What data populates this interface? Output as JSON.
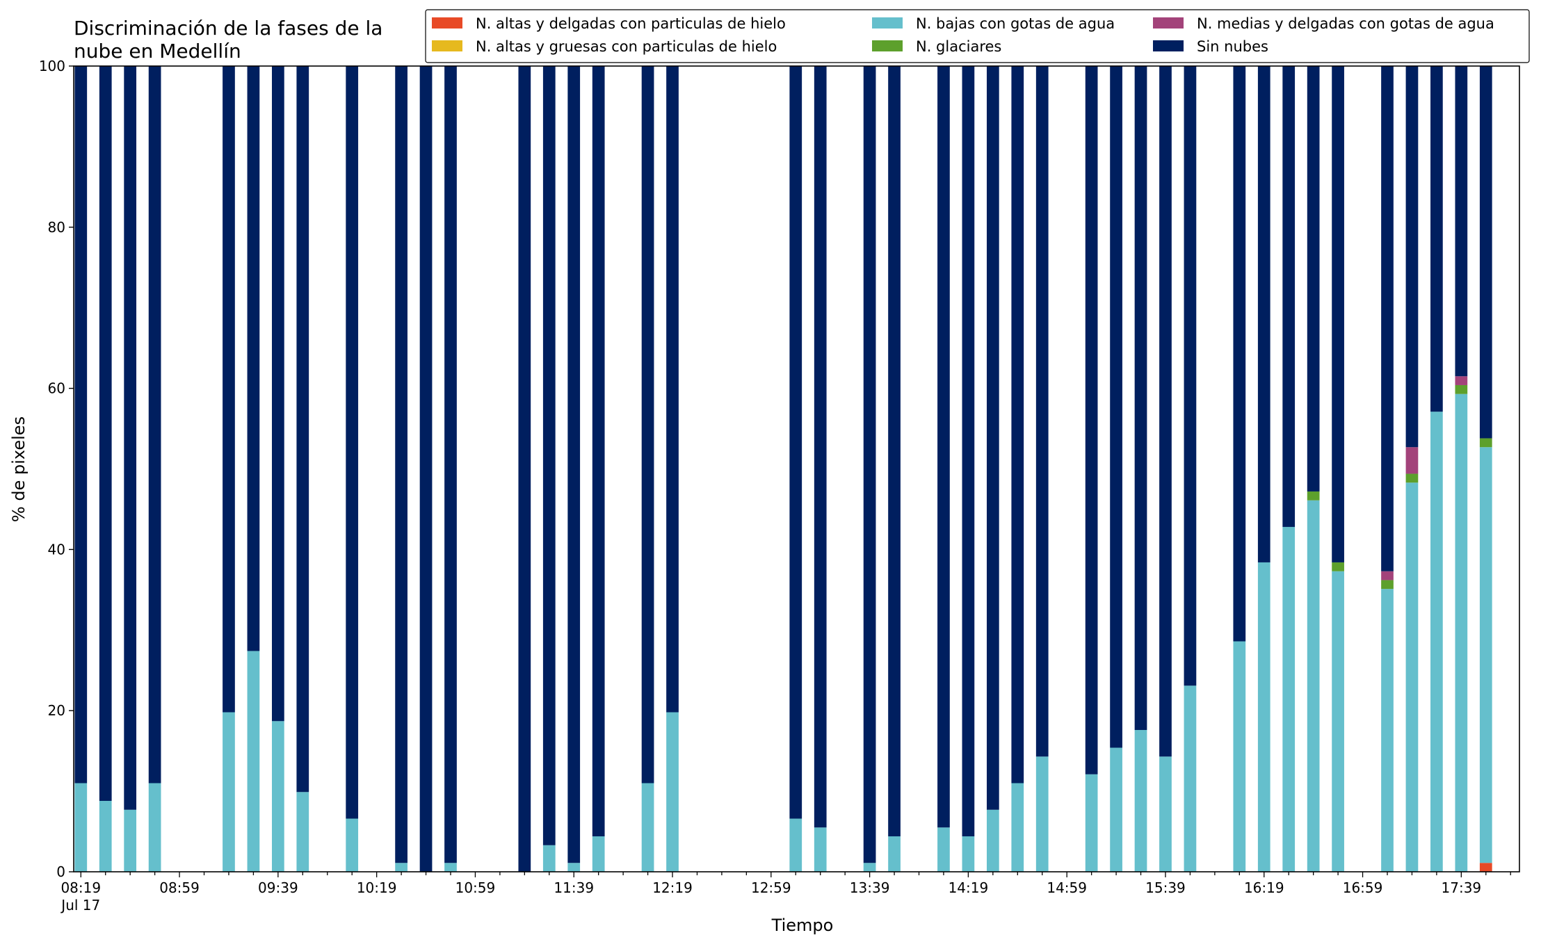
{
  "chart_data": {
    "type": "bar",
    "stacked": true,
    "title": "Discriminación de la fases de la\nnube en Medellín",
    "xlabel": "Tiempo",
    "ylabel": "% de pixeles",
    "ylim": [
      0,
      100
    ],
    "yticks": [
      0,
      20,
      40,
      60,
      80,
      100
    ],
    "x_slot_minutes": 10,
    "x_start": "08:19",
    "x_end": "17:59",
    "x_major_ticks": [
      "08:19",
      "08:59",
      "09:39",
      "10:19",
      "10:59",
      "11:39",
      "12:19",
      "12:59",
      "13:39",
      "14:19",
      "14:59",
      "15:39",
      "16:19",
      "16:59",
      "17:39"
    ],
    "x_date_label": "Jul 17",
    "grid": false,
    "legend_position": "top-right",
    "legend_columns": 3,
    "legend_order": [
      "N. altas y delgadas con particulas de hielo",
      "N. altas y gruesas con particulas de hielo",
      "N. bajas con gotas de agua",
      "N. glaciares",
      "N. medias y delgadas con gotas de agua",
      "Sin nubes"
    ],
    "categories": [
      "08:19",
      "08:29",
      "08:39",
      "08:49",
      "09:19",
      "09:29",
      "09:39",
      "09:49",
      "10:09",
      "10:29",
      "10:39",
      "10:49",
      "11:19",
      "11:29",
      "11:39",
      "11:49",
      "12:09",
      "12:19",
      "13:09",
      "13:19",
      "13:39",
      "13:49",
      "14:09",
      "14:19",
      "14:29",
      "14:39",
      "14:49",
      "15:09",
      "15:19",
      "15:29",
      "15:39",
      "15:49",
      "16:09",
      "16:19",
      "16:29",
      "16:39",
      "16:49",
      "17:09",
      "17:19",
      "17:29",
      "17:39",
      "17:49"
    ],
    "series": [
      {
        "name": "N. altas y delgadas con particulas de hielo",
        "color": "#e84a27",
        "values": [
          0,
          0,
          0,
          0,
          0,
          0,
          0,
          0,
          0,
          0,
          0,
          0,
          0,
          0,
          0,
          0,
          0,
          0,
          0,
          0,
          0,
          0,
          0,
          0,
          0,
          0,
          0,
          0,
          0,
          0,
          0,
          0,
          0,
          0,
          0,
          0,
          0,
          0,
          0,
          0,
          0,
          1.1
        ]
      },
      {
        "name": "N. altas y gruesas con particulas de hielo",
        "color": "#e6b91e",
        "values": [
          0,
          0,
          0,
          0,
          0,
          0,
          0,
          0,
          0,
          0,
          0,
          0,
          0,
          0,
          0,
          0,
          0,
          0,
          0,
          0,
          0,
          0,
          0,
          0,
          0,
          0,
          0,
          0,
          0,
          0,
          0,
          0,
          0,
          0,
          0,
          0,
          0,
          0,
          0,
          0,
          0,
          0
        ]
      },
      {
        "name": "N. bajas con gotas de agua",
        "color": "#65bfcc",
        "values": [
          11,
          8.8,
          7.7,
          11,
          19.8,
          27.4,
          18.7,
          9.9,
          6.6,
          1.1,
          0,
          1.1,
          0,
          3.3,
          1.1,
          4.4,
          11,
          19.8,
          6.6,
          5.5,
          1.1,
          4.4,
          5.5,
          4.4,
          7.7,
          11,
          14.3,
          12.1,
          15.4,
          17.6,
          14.3,
          23.1,
          28.6,
          38.4,
          42.8,
          46.1,
          37.3,
          35.1,
          48.3,
          57.1,
          59.3,
          51.6
        ]
      },
      {
        "name": "N. glaciares",
        "color": "#5da02c",
        "values": [
          0,
          0,
          0,
          0,
          0,
          0,
          0,
          0,
          0,
          0,
          0,
          0,
          0,
          0,
          0,
          0,
          0,
          0,
          0,
          0,
          0,
          0,
          0,
          0,
          0,
          0,
          0,
          0,
          0,
          0,
          0,
          0,
          0,
          0,
          0,
          1.1,
          1.1,
          1.1,
          1.1,
          0,
          1.1,
          1.1
        ]
      },
      {
        "name": "N. medias y delgadas con gotas de agua",
        "color": "#a3437a",
        "values": [
          0,
          0,
          0,
          0,
          0,
          0,
          0,
          0,
          0,
          0,
          0,
          0,
          0,
          0,
          0,
          0,
          0,
          0,
          0,
          0,
          0,
          0,
          0,
          0,
          0,
          0,
          0,
          0,
          0,
          0,
          0,
          0,
          0,
          0,
          0,
          0,
          0,
          1.1,
          3.3,
          0,
          1.1,
          0
        ]
      },
      {
        "name": "Sin nubes",
        "color": "#001f5f",
        "values": [
          89,
          91.2,
          92.3,
          89,
          80.2,
          72.6,
          81.3,
          90.1,
          93.4,
          98.9,
          100,
          98.9,
          100,
          96.7,
          98.9,
          95.6,
          89,
          80.2,
          93.4,
          94.5,
          98.9,
          95.6,
          94.5,
          95.6,
          92.3,
          89,
          85.7,
          87.9,
          84.6,
          82.4,
          85.7,
          76.9,
          71.4,
          61.6,
          57.2,
          52.8,
          61.6,
          62.7,
          47.3,
          42.9,
          38.5,
          46.2
        ]
      }
    ]
  }
}
